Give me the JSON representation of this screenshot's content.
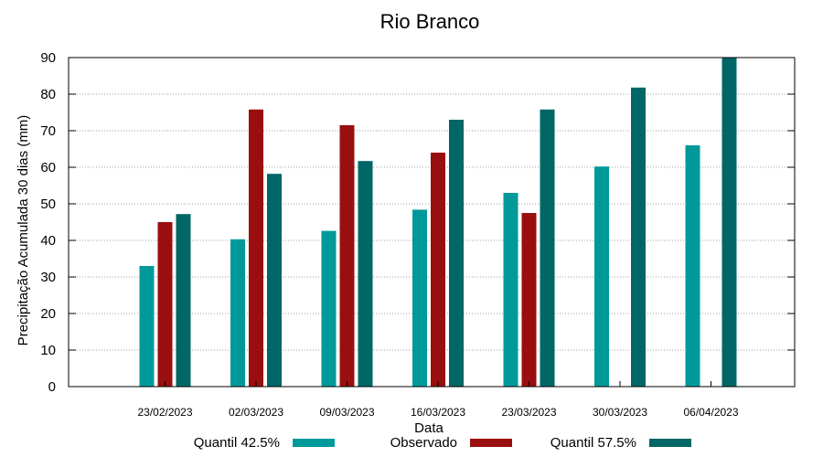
{
  "chart_data": {
    "type": "bar",
    "title": "Rio Branco",
    "xlabel": "Data",
    "ylabel": "Precipitação Acumulada 30 dias (mm)",
    "ylim": [
      0,
      90
    ],
    "yticks": [
      "0",
      "10",
      "20",
      "30",
      "40",
      "50",
      "60",
      "70",
      "80",
      "90"
    ],
    "grid": true,
    "legend_position": "bottom",
    "categories": [
      "23/02/2023",
      "02/03/2023",
      "09/03/2023",
      "16/03/2023",
      "23/03/2023",
      "30/03/2023",
      "06/04/2023"
    ],
    "series": [
      {
        "name": "Quantil 42.5%",
        "color": "#009999",
        "values": [
          33,
          40.3,
          42.6,
          48.4,
          53,
          60.2,
          66
        ]
      },
      {
        "name": "Observado",
        "color": "#990f0f",
        "values": [
          45,
          75.8,
          71.5,
          64,
          47.5,
          null,
          null
        ]
      },
      {
        "name": "Quantil 57.5%",
        "color": "#006666",
        "values": [
          47.2,
          58.2,
          61.7,
          73,
          75.8,
          81.8,
          90
        ]
      }
    ]
  }
}
